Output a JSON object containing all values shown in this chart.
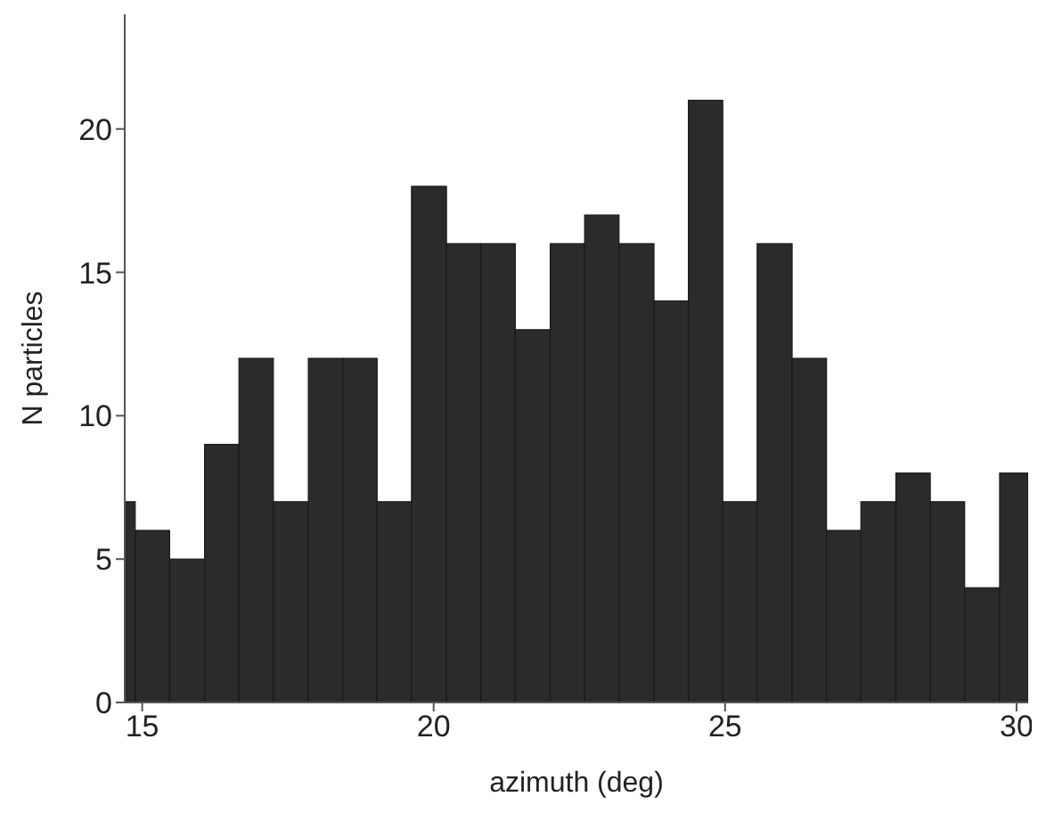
{
  "chart_data": {
    "type": "histogram",
    "xlabel": "azimuth (deg)",
    "ylabel": "N particles",
    "bins": [
      14.7,
      14.88,
      15.47,
      16.07,
      16.66,
      17.25,
      17.85,
      18.44,
      19.03,
      19.62,
      20.22,
      20.81,
      21.4,
      22.0,
      22.59,
      23.18,
      23.78,
      24.37,
      24.96,
      25.55,
      26.15,
      26.74,
      27.33,
      27.93,
      28.52,
      29.11,
      29.71,
      30.2
    ],
    "values": [
      7,
      6,
      5,
      9,
      12,
      7,
      12,
      12,
      7,
      18,
      16,
      16,
      13,
      16,
      17,
      16,
      14,
      21,
      7,
      16,
      12,
      6,
      7,
      8,
      7,
      4,
      8
    ],
    "color": "#2b2b2b",
    "xlim": [
      14.7,
      30.2
    ],
    "xticks": [
      15,
      20,
      25,
      30
    ],
    "ylim": [
      0,
      24
    ],
    "yticks": [
      0,
      5,
      10,
      15,
      20
    ],
    "grid": false,
    "legend": false
  }
}
